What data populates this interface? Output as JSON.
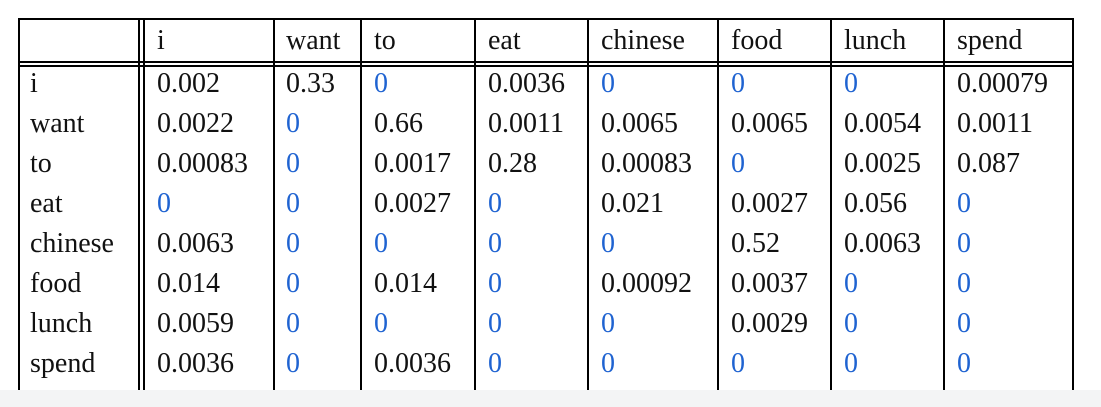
{
  "table": {
    "corner": "",
    "columns": [
      "i",
      "want",
      "to",
      "eat",
      "chinese",
      "food",
      "lunch",
      "spend"
    ],
    "rows": [
      {
        "label": "i",
        "values": [
          "0.002",
          "0.33",
          "0",
          "0.0036",
          "0",
          "0",
          "0",
          "0.00079"
        ]
      },
      {
        "label": "want",
        "values": [
          "0.0022",
          "0",
          "0.66",
          "0.0011",
          "0.0065",
          "0.0065",
          "0.0054",
          "0.0011"
        ]
      },
      {
        "label": "to",
        "values": [
          "0.00083",
          "0",
          "0.0017",
          "0.28",
          "0.00083",
          "0",
          "0.0025",
          "0.087"
        ]
      },
      {
        "label": "eat",
        "values": [
          "0",
          "0",
          "0.0027",
          "0",
          "0.021",
          "0.0027",
          "0.056",
          "0"
        ]
      },
      {
        "label": "chinese",
        "values": [
          "0.0063",
          "0",
          "0",
          "0",
          "0",
          "0.52",
          "0.0063",
          "0"
        ]
      },
      {
        "label": "food",
        "values": [
          "0.014",
          "0",
          "0.014",
          "0",
          "0.00092",
          "0.0037",
          "0",
          "0"
        ]
      },
      {
        "label": "lunch",
        "values": [
          "0.0059",
          "0",
          "0",
          "0",
          "0",
          "0.0029",
          "0",
          "0"
        ]
      },
      {
        "label": "spend",
        "values": [
          "0.0036",
          "0",
          "0.0036",
          "0",
          "0",
          "0",
          "0",
          "0"
        ]
      }
    ]
  },
  "colors": {
    "text": "#111111",
    "zero_highlight": "#1f63d1",
    "rule": "#000000"
  }
}
